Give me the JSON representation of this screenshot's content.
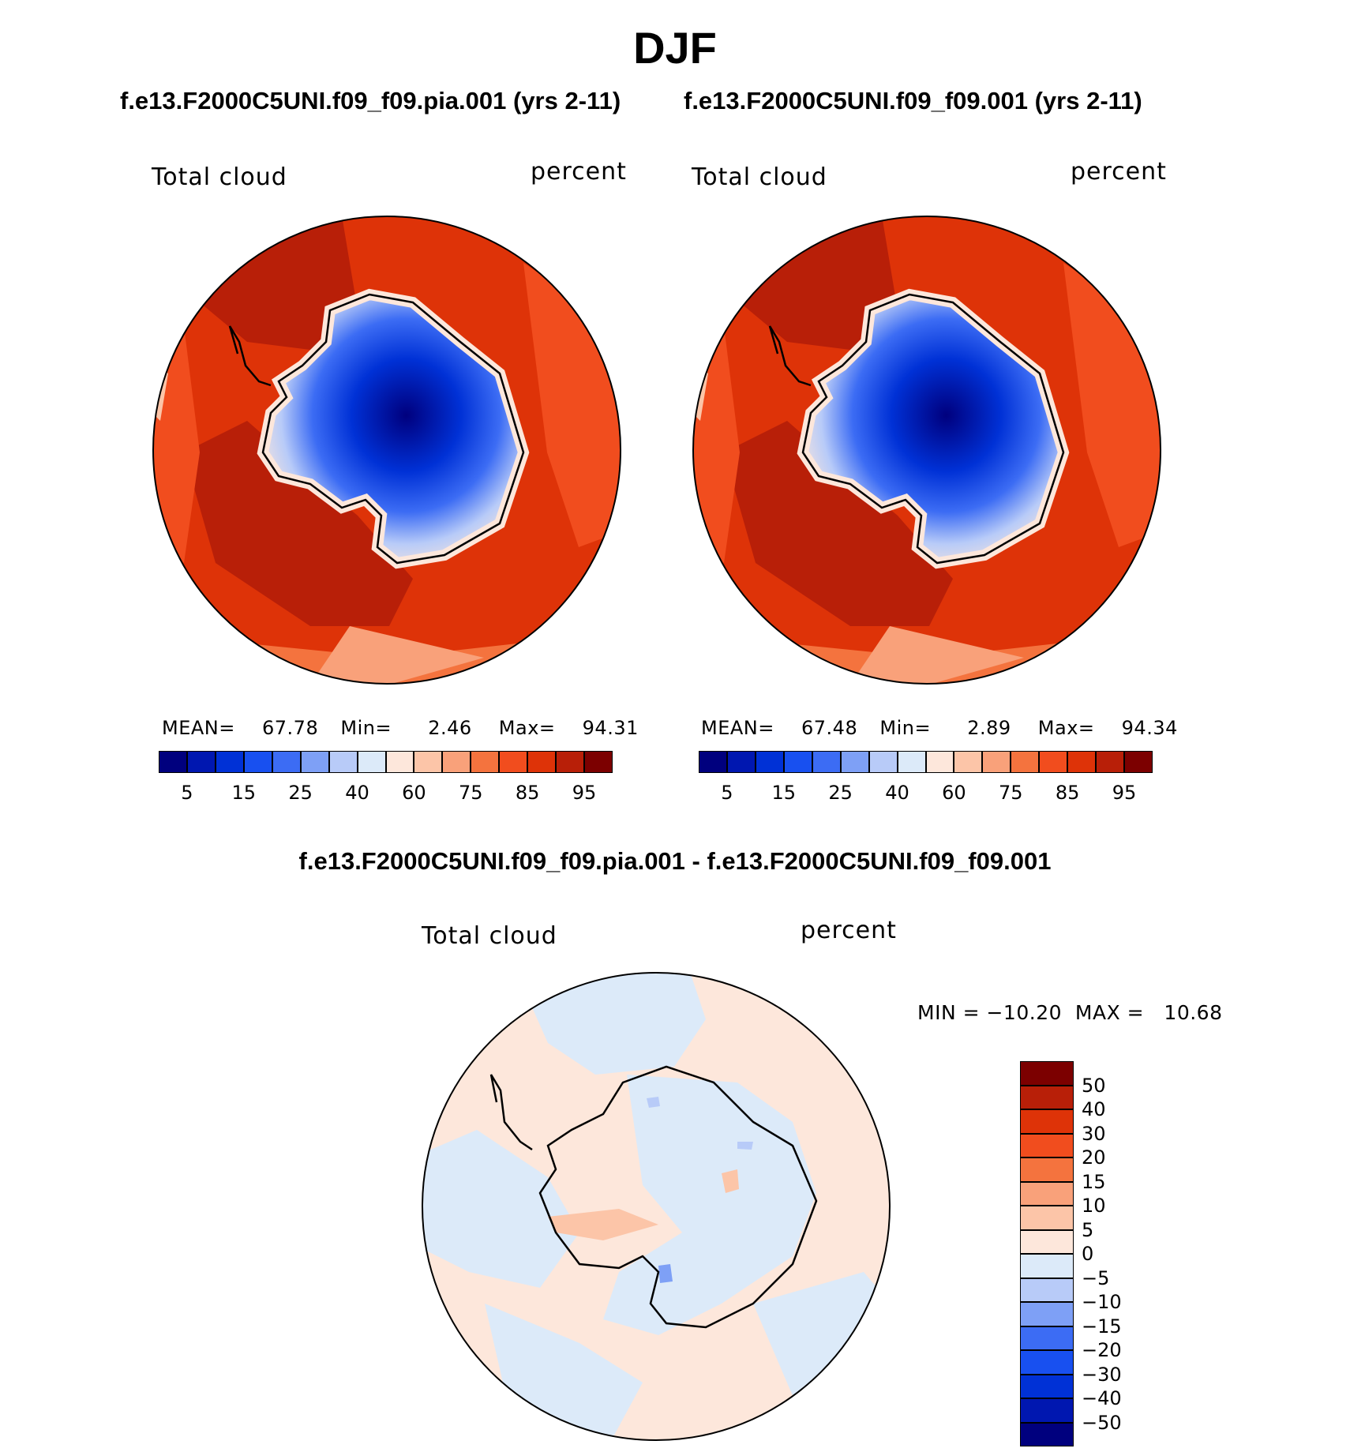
{
  "title": "DJF",
  "panels": [
    {
      "case_name": "f.e13.F2000C5UNI.f09_f09.pia.001 (yrs 2-11)",
      "variable": "Total cloud",
      "units": "percent",
      "stats": {
        "mean_label": "MEAN=",
        "mean": "67.78",
        "min_label": "Min=",
        "min": "2.46",
        "max_label": "Max=",
        "max": "94.31"
      }
    },
    {
      "case_name": "f.e13.F2000C5UNI.f09_f09.001 (yrs 2-11)",
      "variable": "Total cloud",
      "units": "percent",
      "stats": {
        "mean_label": "MEAN=",
        "mean": "67.48",
        "min_label": "Min=",
        "min": "2.89",
        "max_label": "Max=",
        "max": "94.34"
      }
    }
  ],
  "main_colorbar": {
    "colors": [
      "#00007e",
      "#0017b0",
      "#0031d6",
      "#1850f0",
      "#3c6cf4",
      "#7ea0f6",
      "#b8cbf8",
      "#dceaf9",
      "#fde7db",
      "#fcc5a8",
      "#f9a17a",
      "#f4733e",
      "#f14d1e",
      "#de3308",
      "#b81f08",
      "#7c0000"
    ],
    "tick_labels": [
      "5",
      "15",
      "25",
      "40",
      "60",
      "75",
      "85",
      "95"
    ]
  },
  "difference_panel": {
    "case_name": "f.e13.F2000C5UNI.f09_f09.pia.001 - f.e13.F2000C5UNI.f09_f09.001",
    "variable": "Total cloud",
    "units": "percent",
    "min_max": "MIN = −10.20  MAX =   10.68",
    "colorbar": {
      "colors": [
        "#7c0000",
        "#b81f08",
        "#de3308",
        "#f14d1e",
        "#f4733e",
        "#f9a17a",
        "#fcc5a8",
        "#fde7db",
        "#dceaf9",
        "#b8cbf8",
        "#7ea0f6",
        "#3c6cf4",
        "#1850f0",
        "#0031d6",
        "#0017b0",
        "#00007e"
      ],
      "tick_labels": [
        "50",
        "40",
        "30",
        "20",
        "15",
        "10",
        "5",
        "0",
        "−5",
        "−10",
        "−15",
        "−20",
        "−30",
        "−40",
        "−50"
      ]
    }
  },
  "colors": {
    "ocean_high": "#de3308",
    "ocean_max": "#b81f08",
    "diff_pos": "#fde7db",
    "diff_neg": "#dceaf9"
  }
}
